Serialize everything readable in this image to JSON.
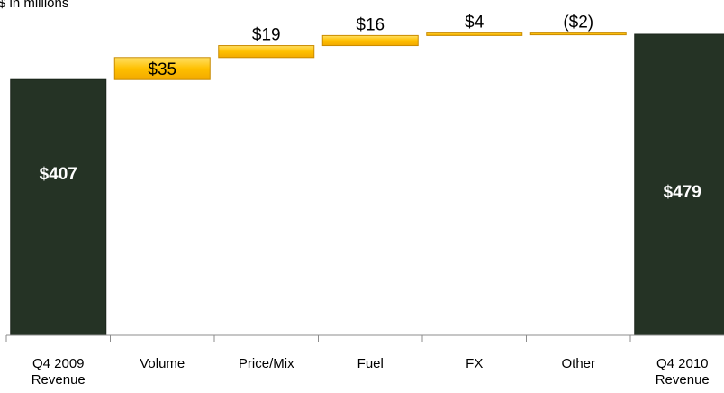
{
  "chart_data": {
    "type": "bar",
    "subtype": "waterfall",
    "title": "",
    "unit_note": "$ in millions",
    "xlabel": "",
    "ylabel": "",
    "grid": false,
    "legend": "none",
    "categories": [
      [
        "Q4 2009",
        "Revenue"
      ],
      [
        "Volume"
      ],
      [
        "Price/Mix"
      ],
      [
        "Fuel"
      ],
      [
        "FX"
      ],
      [
        "Other"
      ],
      [
        "Q4 2010",
        "Revenue"
      ]
    ],
    "bars": [
      {
        "kind": "total",
        "start": 0,
        "end": 407,
        "label": "$407"
      },
      {
        "kind": "change",
        "start": 407,
        "end": 442,
        "label": "$35"
      },
      {
        "kind": "change",
        "start": 442,
        "end": 461,
        "label": "$19"
      },
      {
        "kind": "change",
        "start": 461,
        "end": 477,
        "label": "$16"
      },
      {
        "kind": "change",
        "start": 477,
        "end": 481,
        "label": "$4"
      },
      {
        "kind": "change",
        "start": 481,
        "end": 479,
        "label": "($2)"
      },
      {
        "kind": "total",
        "start": 0,
        "end": 479,
        "label": "$479"
      }
    ],
    "colors": {
      "total": "#253325",
      "change": "#FFC000",
      "change_border": "#C98B00",
      "axis": "#8C8C8C"
    }
  }
}
